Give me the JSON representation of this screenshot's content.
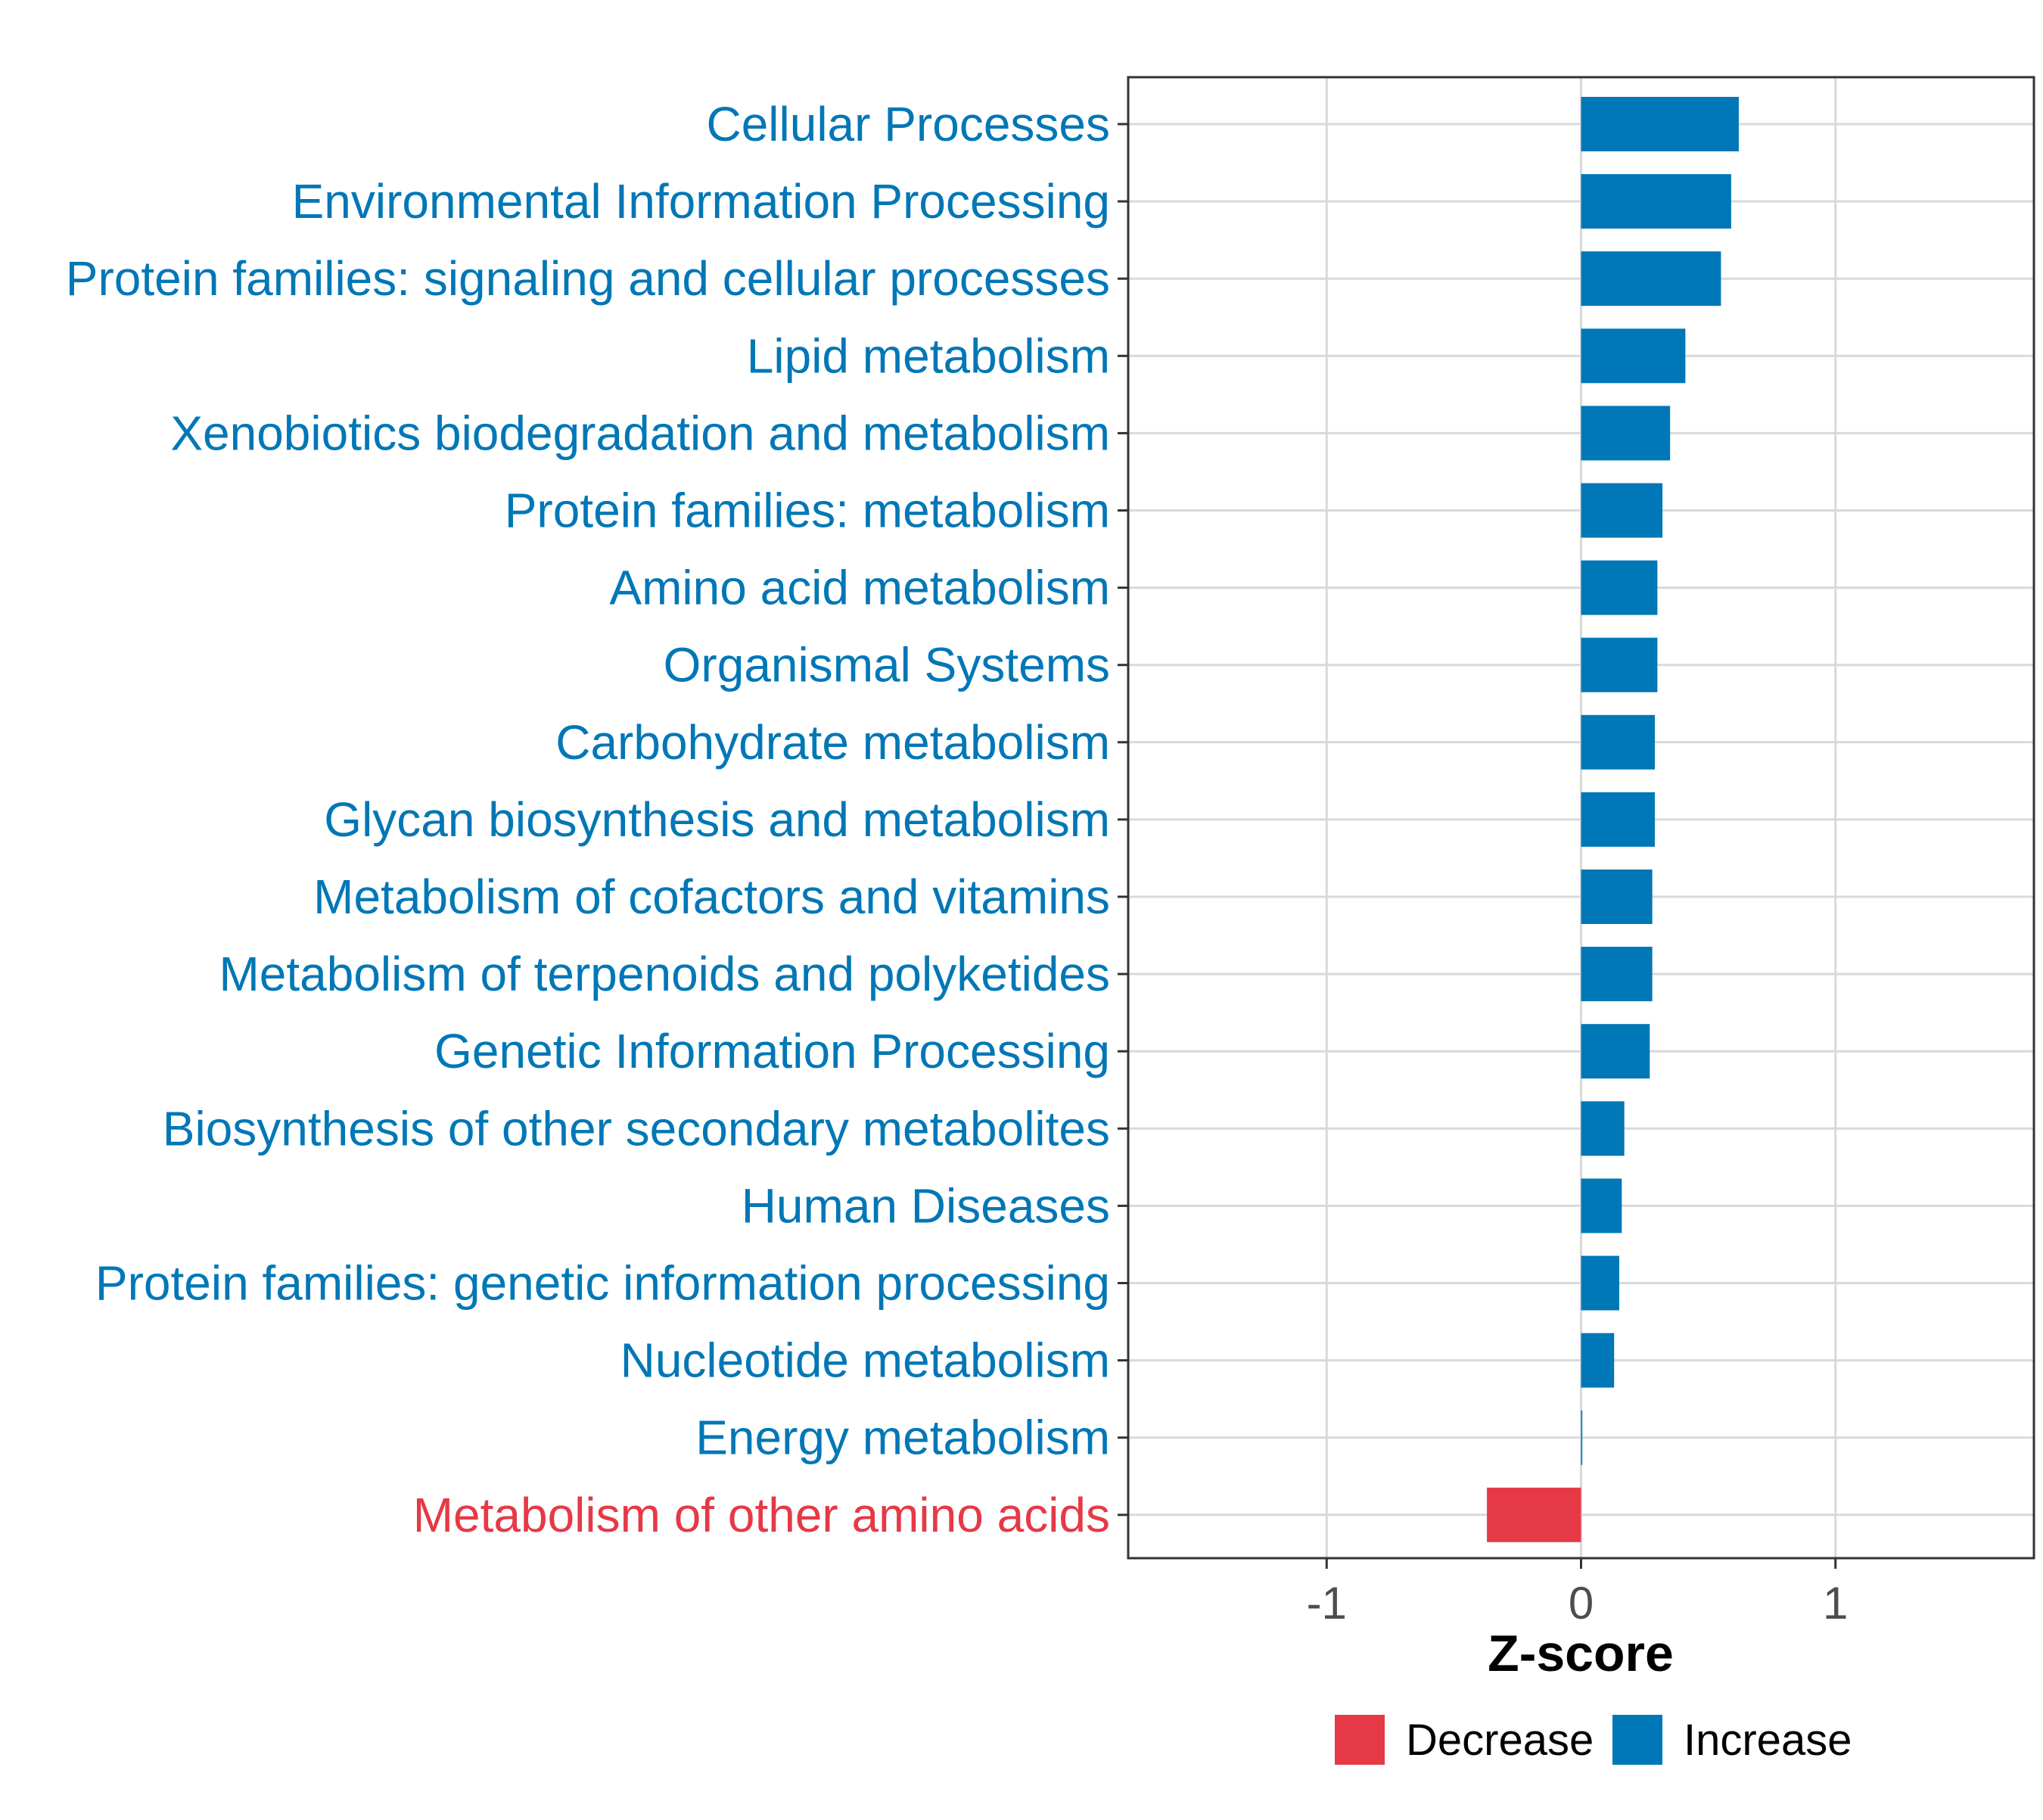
{
  "chart_data": {
    "type": "bar",
    "orientation": "horizontal",
    "title": "",
    "xlabel": "Z-score",
    "ylabel": "",
    "xlim": [
      -1.78,
      1.78
    ],
    "xticks": [
      -1,
      0,
      1
    ],
    "xtick_labels": [
      "-1",
      "0",
      "1"
    ],
    "grid": true,
    "legend_position": "bottom",
    "colors": {
      "Decrease": "#E63946",
      "Increase": "#0077B6"
    },
    "legend": [
      {
        "name": "Decrease",
        "color": "#E63946"
      },
      {
        "name": "Increase",
        "color": "#0077B6"
      }
    ],
    "categories": [
      "Cellular Processes",
      "Environmental Information Processing",
      "Protein families: signaling and cellular processes",
      "Lipid metabolism",
      "Xenobiotics biodegradation and metabolism",
      "Protein families: metabolism",
      "Amino acid metabolism",
      "Organismal Systems",
      "Carbohydrate metabolism",
      "Glycan biosynthesis and metabolism",
      "Metabolism of cofactors and vitamins",
      "Metabolism of terpenoids and polyketides",
      "Genetic Information Processing",
      "Biosynthesis of other secondary metabolites",
      "Human Diseases",
      "Protein families: genetic information processing",
      "Nucleotide metabolism",
      "Energy metabolism",
      "Metabolism of other amino acids"
    ],
    "values": [
      0.62,
      0.59,
      0.55,
      0.41,
      0.35,
      0.32,
      0.3,
      0.3,
      0.29,
      0.29,
      0.28,
      0.28,
      0.27,
      0.17,
      0.16,
      0.15,
      0.13,
      0.005,
      -0.37
    ],
    "groups": [
      "Increase",
      "Increase",
      "Increase",
      "Increase",
      "Increase",
      "Increase",
      "Increase",
      "Increase",
      "Increase",
      "Increase",
      "Increase",
      "Increase",
      "Increase",
      "Increase",
      "Increase",
      "Increase",
      "Increase",
      "Increase",
      "Decrease"
    ]
  }
}
